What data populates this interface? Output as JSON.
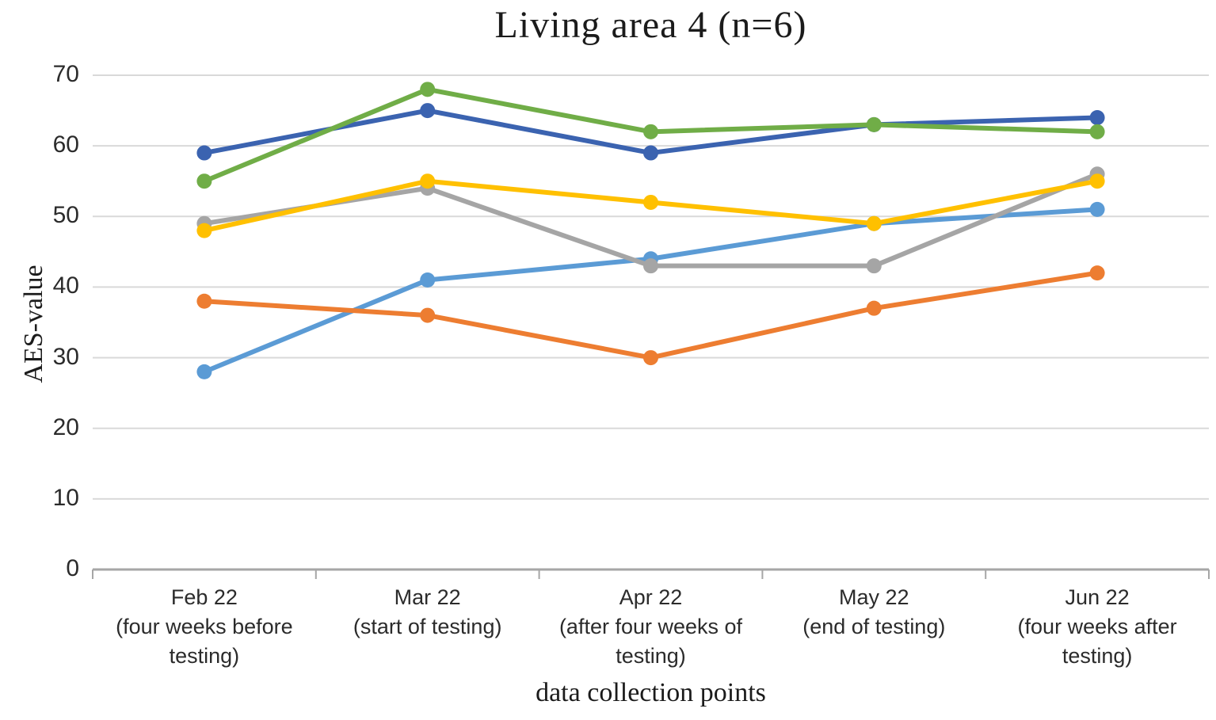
{
  "title": "Living area 4 (n=6)",
  "chart_data": {
    "type": "line",
    "title": "Living area 4 (n=6)",
    "xlabel": "data collection points",
    "ylabel": "AES-value",
    "ylim": [
      0,
      70
    ],
    "yticks": [
      0,
      10,
      20,
      30,
      40,
      50,
      60,
      70
    ],
    "grid": true,
    "legend": "none",
    "marker": "circle",
    "categories": [
      "Feb 22 (four weeks before testing)",
      "Mar 22 (start of testing)",
      "Apr 22 (after four weeks of testing)",
      "May 22 (end of testing)",
      "Jun 22 (four weeks after testing)"
    ],
    "category_label_lines": [
      [
        "Feb 22",
        "(four weeks before",
        "testing)"
      ],
      [
        "Mar 22",
        "(start of testing)"
      ],
      [
        "Apr 22",
        "(after four weeks of",
        "testing)"
      ],
      [
        "May 22",
        "(end of testing)"
      ],
      [
        "Jun 22",
        "(four weeks after",
        "testing)"
      ]
    ],
    "series": [
      {
        "name": "light-blue",
        "color": "#5B9BD5",
        "values": [
          28,
          41,
          44,
          49,
          51
        ]
      },
      {
        "name": "gray",
        "color": "#A5A5A5",
        "values": [
          49,
          54,
          43,
          43,
          56
        ]
      },
      {
        "name": "orange",
        "color": "#ED7D31",
        "values": [
          38,
          36,
          30,
          37,
          42
        ]
      },
      {
        "name": "yellow",
        "color": "#FFC000",
        "values": [
          48,
          55,
          52,
          49,
          55
        ]
      },
      {
        "name": "dark-blue",
        "color": "#3B63B0",
        "values": [
          59,
          65,
          59,
          63,
          64
        ]
      },
      {
        "name": "green",
        "color": "#70AD47",
        "values": [
          55,
          68,
          62,
          63,
          62
        ]
      }
    ],
    "appearance": {
      "gridline_color": "#D9D9D9",
      "axis_line_color": "#A6A6A6",
      "tick_text_color": "#2b2b2b",
      "title_text_color": "#1b1b1b"
    }
  }
}
